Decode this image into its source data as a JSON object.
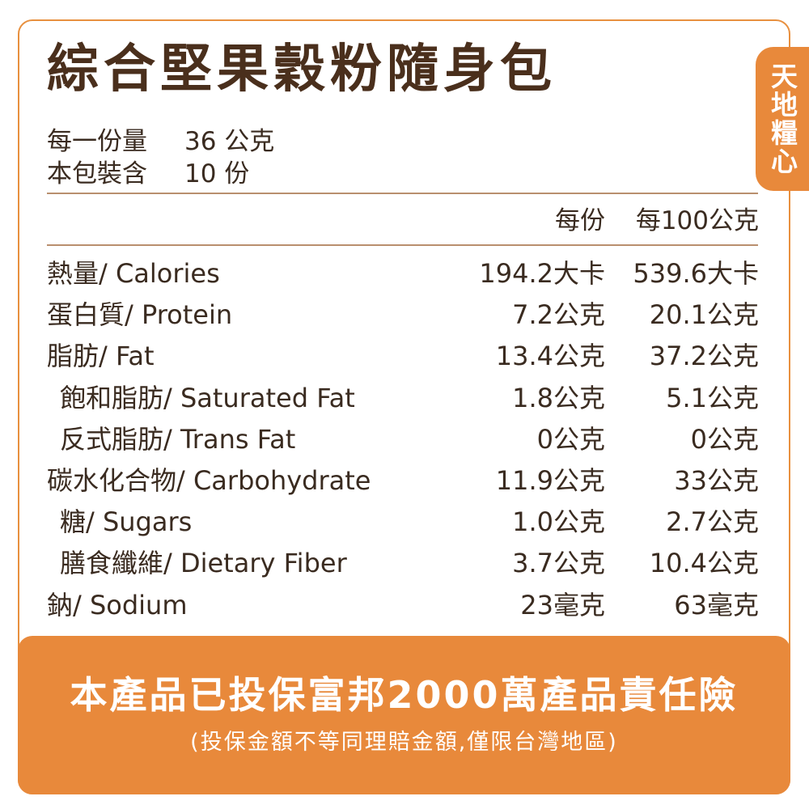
{
  "brand_tab": "天地糧心",
  "title": "綜合堅果穀粉隨身包",
  "serving": {
    "per_serving_label": "每一份量",
    "per_serving_value": "36 公克",
    "servings_label": "本包裝含",
    "servings_value": "10 份"
  },
  "columns": {
    "per_serving": "每份",
    "per_100g": "每100公克"
  },
  "nutrients": [
    {
      "name": "熱量/ Calories",
      "per_serving": "194.2大卡",
      "per_100g": "539.6大卡",
      "indent": false
    },
    {
      "name": "蛋白質/ Protein",
      "per_serving": "7.2公克",
      "per_100g": "20.1公克",
      "indent": false
    },
    {
      "name": "脂肪/ Fat",
      "per_serving": "13.4公克",
      "per_100g": "37.2公克",
      "indent": false
    },
    {
      "name": "飽和脂肪/ Saturated Fat",
      "per_serving": "1.8公克",
      "per_100g": "5.1公克",
      "indent": true
    },
    {
      "name": "反式脂肪/ Trans Fat",
      "per_serving": "0公克",
      "per_100g": "0公克",
      "indent": true
    },
    {
      "name": "碳水化合物/ Carbohydrate",
      "per_serving": "11.9公克",
      "per_100g": "33公克",
      "indent": false
    },
    {
      "name": "糖/ Sugars",
      "per_serving": "1.0公克",
      "per_100g": "2.7公克",
      "indent": true
    },
    {
      "name": "膳食纖維/ Dietary Fiber",
      "per_serving": "3.7公克",
      "per_100g": "10.4公克",
      "indent": true
    },
    {
      "name": "鈉/ Sodium",
      "per_serving": "23毫克",
      "per_100g": "63毫克",
      "indent": false
    }
  ],
  "banner": {
    "main": "本產品已投保富邦2000萬產品責任險",
    "sub": "(投保金額不等同理賠金額,僅限台灣地區)"
  },
  "colors": {
    "accent": "#e8893b",
    "title": "#4a2f1c",
    "text": "#3a2b20",
    "rule": "#b98f6e"
  }
}
